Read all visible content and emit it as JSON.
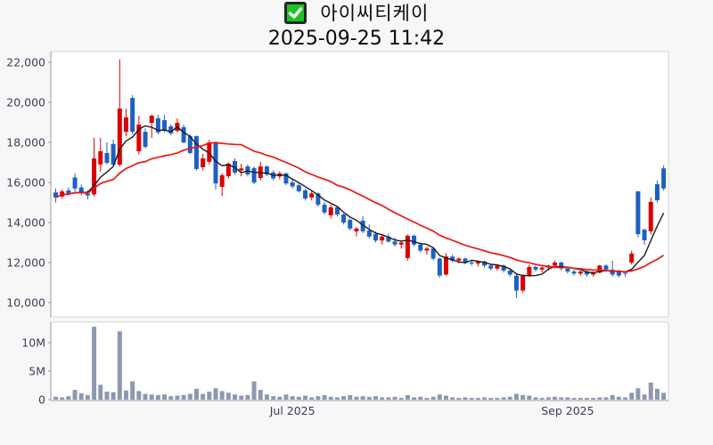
{
  "header": {
    "stock_name": "아이씨티케이",
    "datetime": "2025-09-25 11:42",
    "checkbox_state": "checked"
  },
  "chart_data": {
    "type": "candlestick_with_volume",
    "title": "아이씨티케이 2025-09-25 11:42",
    "legend_position": "none",
    "grid": false,
    "price_axis": {
      "min": 10000,
      "max": 22500,
      "ticks": [
        {
          "value": 22000,
          "label": "22,000"
        },
        {
          "value": 20000,
          "label": "20,000"
        },
        {
          "value": 18000,
          "label": "18,000"
        },
        {
          "value": 16000,
          "label": "16,000"
        },
        {
          "value": 14000,
          "label": "14,000"
        },
        {
          "value": 12000,
          "label": "12,000"
        },
        {
          "value": 10000,
          "label": "10,000"
        }
      ]
    },
    "volume_axis": {
      "min": 0,
      "max": 13500000,
      "ticks": [
        {
          "value": 10000000,
          "label": "10M"
        },
        {
          "value": 5000000,
          "label": "5M"
        },
        {
          "value": 0,
          "label": "0"
        }
      ]
    },
    "x_axis": {
      "ticks": [
        {
          "label": "Jul 2025",
          "index": 37
        },
        {
          "label": "Sep 2025",
          "index": 80
        }
      ]
    },
    "colors": {
      "up": "#dc0000",
      "down": "#1d60c5",
      "volume_bar": "#8d98b0",
      "ma_short": "#1a1a1a",
      "ma_long": "#f01414",
      "axis_label": "#3a4156",
      "axis_line": "#9a9a9a",
      "plot_border": "#d4d4d4",
      "plot_background": "#ffffff",
      "page_background": "#f7f7f8"
    },
    "moving_averages": [
      {
        "name": "short-term",
        "period": 5,
        "color_key": "ma_short",
        "width": 1.4
      },
      {
        "name": "long-term",
        "period": 20,
        "color_key": "ma_long",
        "width": 1.7
      }
    ],
    "candles_ohlc": [
      [
        15500,
        15700,
        15000,
        15250
      ],
      [
        15300,
        15650,
        15200,
        15550
      ],
      [
        15600,
        15750,
        15350,
        15450
      ],
      [
        16250,
        16450,
        15550,
        15700
      ],
      [
        15750,
        15900,
        15350,
        15500
      ],
      [
        15450,
        15600,
        15150,
        15350
      ],
      [
        15400,
        18230,
        15300,
        17200
      ],
      [
        16900,
        18230,
        16530,
        17560
      ],
      [
        17470,
        18000,
        16900,
        16980
      ],
      [
        17920,
        18130,
        16820,
        16890
      ],
      [
        16890,
        22150,
        16800,
        19690
      ],
      [
        18530,
        19690,
        18300,
        19250
      ],
      [
        20220,
        20360,
        18400,
        18530
      ],
      [
        17560,
        19330,
        17400,
        18890
      ],
      [
        18530,
        18700,
        17700,
        17780
      ],
      [
        18980,
        19400,
        18220,
        19330
      ],
      [
        19200,
        19380,
        18400,
        18500
      ],
      [
        19110,
        19380,
        18500,
        18580
      ],
      [
        18800,
        18900,
        18350,
        18450
      ],
      [
        18580,
        19200,
        18500,
        18980
      ],
      [
        18760,
        18900,
        17950,
        18000
      ],
      [
        18310,
        18400,
        17400,
        17470
      ],
      [
        18310,
        18350,
        16600,
        16670
      ],
      [
        16760,
        17420,
        16600,
        17200
      ],
      [
        17030,
        18130,
        16900,
        18000
      ],
      [
        18000,
        18000,
        15640,
        15950
      ],
      [
        15780,
        16450,
        15330,
        16360
      ],
      [
        16310,
        17000,
        16200,
        16940
      ],
      [
        17070,
        17200,
        16400,
        16490
      ],
      [
        16600,
        16940,
        16300,
        16700
      ],
      [
        16800,
        16900,
        16300,
        16400
      ],
      [
        16710,
        16800,
        15910,
        16000
      ],
      [
        16220,
        17030,
        16100,
        16800
      ],
      [
        16800,
        16850,
        16310,
        16400
      ],
      [
        16500,
        16600,
        16100,
        16200
      ],
      [
        16300,
        16550,
        16150,
        16450
      ],
      [
        16450,
        16500,
        15860,
        15950
      ],
      [
        16000,
        16220,
        15700,
        15800
      ],
      [
        15860,
        15950,
        15500,
        15560
      ],
      [
        15600,
        15700,
        15100,
        15200
      ],
      [
        15250,
        15560,
        15100,
        15450
      ],
      [
        15450,
        15500,
        14800,
        14890
      ],
      [
        14890,
        15030,
        14400,
        14500
      ],
      [
        14360,
        14890,
        14200,
        14760
      ],
      [
        14760,
        14800,
        14300,
        14400
      ],
      [
        14400,
        14450,
        13900,
        14000
      ],
      [
        14130,
        14200,
        13600,
        13700
      ],
      [
        13560,
        13780,
        13300,
        13700
      ],
      [
        14090,
        14310,
        13470,
        13560
      ],
      [
        13600,
        13900,
        13200,
        13300
      ],
      [
        13420,
        13560,
        13000,
        13100
      ],
      [
        13100,
        13400,
        12900,
        13300
      ],
      [
        13300,
        13450,
        12980,
        13050
      ],
      [
        13050,
        13250,
        12800,
        12900
      ],
      [
        12900,
        13100,
        12700,
        13000
      ],
      [
        12230,
        13400,
        12100,
        13340
      ],
      [
        13340,
        13400,
        12800,
        12900
      ],
      [
        12900,
        13000,
        12500,
        12600
      ],
      [
        12600,
        12800,
        12400,
        12700
      ],
      [
        12700,
        12750,
        12100,
        12200
      ],
      [
        12200,
        12250,
        11250,
        11350
      ],
      [
        11400,
        12470,
        11350,
        12300
      ],
      [
        12300,
        12400,
        12000,
        12100
      ],
      [
        12100,
        12250,
        11950,
        12200
      ],
      [
        12200,
        12250,
        11900,
        12000
      ],
      [
        12000,
        12150,
        11850,
        11950
      ],
      [
        11950,
        12100,
        11800,
        12050
      ],
      [
        12050,
        12100,
        11750,
        11850
      ],
      [
        11850,
        11950,
        11600,
        11700
      ],
      [
        11700,
        11900,
        11600,
        11850
      ],
      [
        11850,
        11900,
        11500,
        11600
      ],
      [
        11600,
        11700,
        11300,
        11400
      ],
      [
        11350,
        11400,
        10220,
        10600
      ],
      [
        10600,
        11400,
        10500,
        11330
      ],
      [
        11330,
        11900,
        11300,
        11780
      ],
      [
        11780,
        11850,
        11550,
        11650
      ],
      [
        11650,
        11800,
        11500,
        11750
      ],
      [
        11750,
        11900,
        11600,
        11850
      ],
      [
        11850,
        12100,
        11700,
        12000
      ],
      [
        12000,
        12050,
        11600,
        11700
      ],
      [
        11700,
        11750,
        11450,
        11550
      ],
      [
        11550,
        11650,
        11350,
        11450
      ],
      [
        11450,
        11600,
        11350,
        11550
      ],
      [
        11550,
        11600,
        11300,
        11400
      ],
      [
        11400,
        11550,
        11300,
        11500
      ],
      [
        11500,
        11890,
        11450,
        11850
      ],
      [
        11850,
        11900,
        11550,
        11650
      ],
      [
        11650,
        12090,
        11300,
        11400
      ],
      [
        11560,
        11650,
        11250,
        11350
      ],
      [
        11500,
        11560,
        11300,
        11450
      ],
      [
        12000,
        12590,
        11900,
        12450
      ],
      [
        15560,
        15560,
        13250,
        13420
      ],
      [
        13640,
        13700,
        12890,
        13110
      ],
      [
        13560,
        15250,
        13400,
        15030
      ],
      [
        15910,
        16090,
        15000,
        15110
      ],
      [
        16700,
        16850,
        15600,
        15700
      ]
    ],
    "volumes": [
      500000,
      400000,
      600000,
      1700000,
      1100000,
      800000,
      12800000,
      2600000,
      1400000,
      1300000,
      12000000,
      1600000,
      3200000,
      1500000,
      1000000,
      900000,
      800000,
      900000,
      600000,
      700000,
      800000,
      1000000,
      1900000,
      1000000,
      1400000,
      2000000,
      1500000,
      1200000,
      900000,
      700000,
      800000,
      3200000,
      1700000,
      900000,
      600000,
      500000,
      900000,
      600000,
      500000,
      700000,
      400000,
      600000,
      800000,
      500000,
      400000,
      600000,
      800000,
      500000,
      600000,
      500000,
      600000,
      400000,
      400000,
      500000,
      300000,
      800000,
      400000,
      500000,
      300000,
      500000,
      900000,
      700000,
      400000,
      300000,
      400000,
      300000,
      300000,
      400000,
      300000,
      300000,
      400000,
      500000,
      1000000,
      800000,
      700000,
      400000,
      300000,
      400000,
      500000,
      400000,
      400000,
      300000,
      300000,
      300000,
      300000,
      400000,
      400000,
      800000,
      500000,
      400000,
      1200000,
      2000000,
      900000,
      3000000,
      1900000,
      1200000
    ]
  }
}
